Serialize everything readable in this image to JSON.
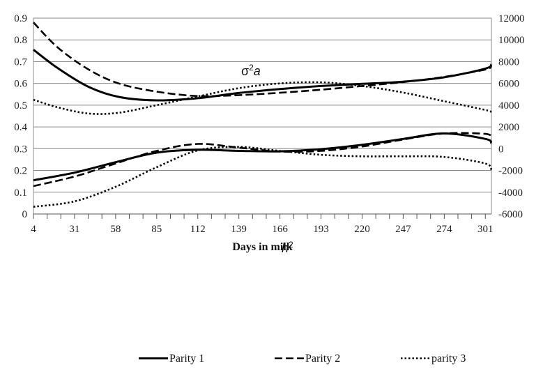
{
  "chart_data": {
    "type": "line",
    "xlabel": "Days in milk",
    "x_ticks": [
      4,
      31,
      58,
      85,
      112,
      139,
      166,
      193,
      220,
      247,
      274,
      301
    ],
    "xlim": [
      4,
      305
    ],
    "ylim_left": [
      0,
      0.9
    ],
    "y_ticks_left": [
      "0",
      "0.1",
      "0.2",
      "0.3",
      "0.4",
      "0.5",
      "0.6",
      "0.7",
      "0.8",
      "0.9"
    ],
    "ylim_right": [
      -6000,
      12000
    ],
    "y_ticks_right": [
      "-6000",
      "-4000",
      "-2000",
      "0",
      "2000",
      "4000",
      "6000",
      "8000",
      "10000",
      "12000"
    ],
    "grid": true,
    "legend_position": "bottom",
    "annotations": {
      "sigma": {
        "base": "σ",
        "sup": "2",
        "var": "a"
      },
      "h2": {
        "base": "h",
        "sup": "2"
      }
    },
    "series": [
      {
        "name": "Parity 1",
        "style": "solid",
        "group": "sigma2a",
        "axis": "left",
        "x": [
          4,
          20,
          40,
          60,
          85,
          112,
          139,
          166,
          193,
          220,
          247,
          274,
          301,
          305
        ],
        "y": [
          0.755,
          0.67,
          0.585,
          0.538,
          0.522,
          0.532,
          0.556,
          0.574,
          0.588,
          0.598,
          0.608,
          0.628,
          0.668,
          0.688
        ]
      },
      {
        "name": "Parity 2",
        "style": "dashed",
        "group": "sigma2a",
        "axis": "left",
        "x": [
          4,
          20,
          40,
          60,
          85,
          112,
          139,
          166,
          193,
          220,
          247,
          274,
          301,
          305
        ],
        "y": [
          0.88,
          0.765,
          0.665,
          0.6,
          0.562,
          0.542,
          0.546,
          0.557,
          0.571,
          0.588,
          0.606,
          0.63,
          0.664,
          0.682
        ]
      },
      {
        "name": "parity 3",
        "style": "dotted",
        "group": "sigma2a",
        "axis": "left",
        "x": [
          4,
          20,
          40,
          60,
          85,
          112,
          139,
          166,
          193,
          220,
          247,
          274,
          301,
          305
        ],
        "y": [
          0.525,
          0.49,
          0.462,
          0.465,
          0.5,
          0.54,
          0.578,
          0.6,
          0.605,
          0.588,
          0.558,
          0.518,
          0.478,
          0.468
        ]
      },
      {
        "name": "Parity 1",
        "style": "solid",
        "group": "h2",
        "axis": "left",
        "x": [
          4,
          31,
          58,
          85,
          112,
          139,
          166,
          193,
          220,
          247,
          274,
          301,
          305
        ],
        "y": [
          0.155,
          0.19,
          0.238,
          0.282,
          0.295,
          0.29,
          0.288,
          0.298,
          0.318,
          0.345,
          0.37,
          0.345,
          0.325
        ]
      },
      {
        "name": "Parity 2",
        "style": "dashed",
        "group": "h2",
        "axis": "left",
        "x": [
          4,
          31,
          58,
          85,
          112,
          139,
          166,
          193,
          220,
          247,
          274,
          301,
          305
        ],
        "y": [
          0.128,
          0.172,
          0.232,
          0.29,
          0.322,
          0.305,
          0.287,
          0.29,
          0.31,
          0.342,
          0.37,
          0.368,
          0.35
        ]
      },
      {
        "name": "parity 3",
        "style": "dotted",
        "group": "h2",
        "axis": "left",
        "x": [
          4,
          31,
          58,
          85,
          112,
          139,
          166,
          193,
          220,
          247,
          274,
          301,
          305
        ],
        "y": [
          0.033,
          0.058,
          0.125,
          0.215,
          0.292,
          0.308,
          0.29,
          0.272,
          0.265,
          0.265,
          0.262,
          0.232,
          0.2
        ]
      }
    ]
  },
  "legend": {
    "items": [
      {
        "label": "Parity 1",
        "style": "solid"
      },
      {
        "label": "Parity 2",
        "style": "dashed"
      },
      {
        "label": "parity 3",
        "style": "dotted"
      }
    ]
  }
}
